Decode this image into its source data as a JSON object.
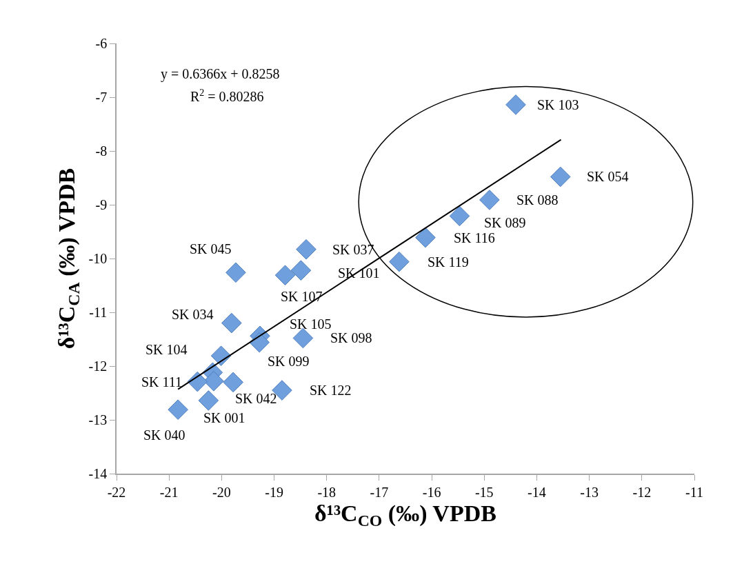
{
  "chart_data": {
    "type": "scatter",
    "xlabel": "δ¹³C$_{CO}$ (‰) VPDB",
    "ylabel": "δ¹³C$_{CA}$ (‰) VPDB",
    "xlim": [
      -22,
      -11
    ],
    "xticks": [
      -22,
      -21,
      -20,
      -19,
      -18,
      -17,
      -16,
      -15,
      -14,
      -13,
      -12,
      -11
    ],
    "ylim": [
      -14,
      -6
    ],
    "yticks": [
      -14,
      -13,
      -12,
      -11,
      -10,
      -9,
      -8,
      -7,
      -6
    ],
    "grid": false,
    "marker": "diamond",
    "series": [
      {
        "color": "#6f9fdc",
        "x": [
          -19.73,
          -18.39,
          -18.49,
          -18.79,
          -19.81,
          -19.27,
          -18.45,
          -19.28,
          -20.01,
          -20.17,
          -20.15,
          -20.46,
          -19.78,
          -18.85,
          -20.25,
          -20.83,
          -14.4,
          -13.55,
          -14.9,
          -15.47,
          -16.12,
          -16.62
        ],
        "values": [
          -10.26,
          -9.83,
          -10.22,
          -10.31,
          -11.2,
          -11.44,
          -11.48,
          -11.56,
          -11.81,
          -12.12,
          -12.28,
          -12.29,
          -12.3,
          -12.45,
          -12.64,
          -12.81,
          -7.14,
          -8.48,
          -8.91,
          -9.21,
          -9.61,
          -10.06
        ]
      },
      {
        "type": "line",
        "color": "#000000",
        "marker": "none",
        "line_style": "solid",
        "x": [
          -20.83,
          -13.54
        ],
        "values": [
          -12.43,
          -7.79
        ]
      }
    ],
    "annotations": [
      "y = 0.6366x + 0.8258",
      "R$^{2}$ = 0.80286",
      {
        "text": "SK 045",
        "x": -19.73,
        "y": -10.26
      },
      {
        "text": "SK 037",
        "x": -18.39,
        "y": -9.83
      },
      {
        "text": "SK 101",
        "x": -18.49,
        "y": -10.22
      },
      {
        "text": "SK 107",
        "x": -18.79,
        "y": -10.31
      },
      {
        "text": "SK 034",
        "x": -19.81,
        "y": -11.2
      },
      {
        "text": "SK 105",
        "x": -19.27,
        "y": -11.44
      },
      {
        "text": "SK 098",
        "x": -18.45,
        "y": -11.48
      },
      {
        "text": "SK 099",
        "x": -19.28,
        "y": -11.56
      },
      {
        "text": "SK 104",
        "x": -20.01,
        "y": -11.81
      },
      {
        "text": "SK 111",
        "x": -20.46,
        "y": -12.29
      },
      {
        "text": "SK 042",
        "x": -19.78,
        "y": -12.3
      },
      {
        "text": "SK 122",
        "x": -18.85,
        "y": -12.45
      },
      {
        "text": "SK 001",
        "x": -20.25,
        "y": -12.64
      },
      {
        "text": "SK 040",
        "x": -20.83,
        "y": -12.81
      },
      {
        "text": "SK 103",
        "x": -14.4,
        "y": -7.14
      },
      {
        "text": "SK 054",
        "x": -13.55,
        "y": -8.48
      },
      {
        "text": "SK 088",
        "x": -14.9,
        "y": -8.91
      },
      {
        "text": "SK 089",
        "x": -15.47,
        "y": -9.21
      },
      {
        "text": "SK 116",
        "x": -16.12,
        "y": -9.61
      },
      {
        "text": "SK 119",
        "x": -16.62,
        "y": -10.06
      }
    ]
  }
}
